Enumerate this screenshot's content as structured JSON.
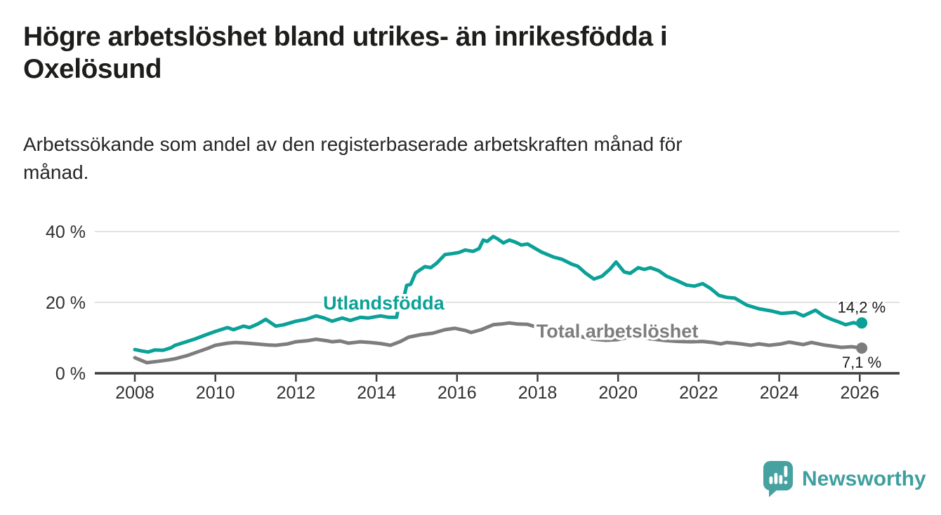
{
  "title": {
    "lines": [
      "Högre arbetslöshet bland utrikes- än inrikesfödda i",
      "Oxelösund"
    ]
  },
  "subtitle": {
    "lines": [
      "Arbetssökande som andel av den registerbaserade arbetskraften månad för",
      "månad."
    ]
  },
  "chart_data": {
    "type": "line",
    "title": "Högre arbetslöshet bland utrikes- än inrikesfödda i Oxelösund",
    "subtitle": "Arbetssökande som andel av den registerbaserade arbetskraften månad för månad.",
    "grid": "horizontal-only",
    "legend_position": "inline-labels",
    "x_axis": {
      "range": [
        2007,
        2027
      ],
      "ticks": [
        2008,
        2010,
        2012,
        2014,
        2016,
        2018,
        2020,
        2022,
        2024,
        2026
      ]
    },
    "y_axis": {
      "range": [
        0,
        42
      ],
      "unit": "%",
      "ticks": [
        {
          "value": 0,
          "label": "0 %"
        },
        {
          "value": 20,
          "label": "20 %"
        },
        {
          "value": 40,
          "label": "40 %"
        }
      ],
      "gridlines": [
        20,
        40
      ]
    },
    "series": [
      {
        "id": "utlandsfodda",
        "name": "Utlandsfödda",
        "color": "#0ba198",
        "end_label": "14,2 %",
        "end_value": 14.2,
        "label_anchor": {
          "x": 2014.18,
          "y": 18.0
        },
        "points": [
          [
            2008.0,
            6.7
          ],
          [
            2008.17,
            6.3
          ],
          [
            2008.33,
            6.0
          ],
          [
            2008.5,
            6.6
          ],
          [
            2008.7,
            6.5
          ],
          [
            2008.9,
            7.2
          ],
          [
            2009.0,
            7.9
          ],
          [
            2009.25,
            8.8
          ],
          [
            2009.5,
            9.7
          ],
          [
            2009.75,
            10.8
          ],
          [
            2010.0,
            11.8
          ],
          [
            2010.3,
            12.9
          ],
          [
            2010.45,
            12.3
          ],
          [
            2010.7,
            13.3
          ],
          [
            2010.85,
            12.9
          ],
          [
            2011.05,
            13.9
          ],
          [
            2011.25,
            15.2
          ],
          [
            2011.5,
            13.3
          ],
          [
            2011.7,
            13.7
          ],
          [
            2011.85,
            14.2
          ],
          [
            2012.0,
            14.7
          ],
          [
            2012.25,
            15.2
          ],
          [
            2012.5,
            16.2
          ],
          [
            2012.7,
            15.6
          ],
          [
            2012.9,
            14.7
          ],
          [
            2013.15,
            15.6
          ],
          [
            2013.35,
            14.9
          ],
          [
            2013.6,
            15.8
          ],
          [
            2013.8,
            15.6
          ],
          [
            2014.1,
            16.2
          ],
          [
            2014.3,
            15.8
          ],
          [
            2014.5,
            15.8
          ],
          [
            2014.6,
            21.8
          ],
          [
            2014.68,
            21.4
          ],
          [
            2014.75,
            24.8
          ],
          [
            2014.85,
            25.1
          ],
          [
            2014.97,
            28.3
          ],
          [
            2015.2,
            30.1
          ],
          [
            2015.35,
            29.8
          ],
          [
            2015.5,
            31.1
          ],
          [
            2015.7,
            33.5
          ],
          [
            2015.9,
            33.8
          ],
          [
            2016.05,
            34.1
          ],
          [
            2016.2,
            34.8
          ],
          [
            2016.4,
            34.4
          ],
          [
            2016.55,
            35.2
          ],
          [
            2016.65,
            37.6
          ],
          [
            2016.75,
            37.2
          ],
          [
            2016.9,
            38.6
          ],
          [
            2017.0,
            38.0
          ],
          [
            2017.15,
            36.8
          ],
          [
            2017.3,
            37.6
          ],
          [
            2017.45,
            37.0
          ],
          [
            2017.6,
            36.2
          ],
          [
            2017.75,
            36.5
          ],
          [
            2017.9,
            35.5
          ],
          [
            2018.1,
            34.2
          ],
          [
            2018.4,
            32.8
          ],
          [
            2018.6,
            32.2
          ],
          [
            2018.85,
            30.8
          ],
          [
            2019.0,
            30.2
          ],
          [
            2019.2,
            28.2
          ],
          [
            2019.4,
            26.6
          ],
          [
            2019.6,
            27.4
          ],
          [
            2019.8,
            29.4
          ],
          [
            2019.95,
            31.4
          ],
          [
            2020.15,
            28.6
          ],
          [
            2020.3,
            28.2
          ],
          [
            2020.5,
            29.8
          ],
          [
            2020.65,
            29.3
          ],
          [
            2020.8,
            29.8
          ],
          [
            2021.0,
            29.0
          ],
          [
            2021.2,
            27.4
          ],
          [
            2021.45,
            26.2
          ],
          [
            2021.7,
            24.9
          ],
          [
            2021.9,
            24.6
          ],
          [
            2022.1,
            25.3
          ],
          [
            2022.3,
            23.9
          ],
          [
            2022.5,
            22.0
          ],
          [
            2022.7,
            21.4
          ],
          [
            2022.9,
            21.2
          ],
          [
            2023.05,
            20.2
          ],
          [
            2023.2,
            19.2
          ],
          [
            2023.5,
            18.2
          ],
          [
            2023.8,
            17.6
          ],
          [
            2024.05,
            16.9
          ],
          [
            2024.4,
            17.2
          ],
          [
            2024.6,
            16.2
          ],
          [
            2024.9,
            17.8
          ],
          [
            2025.1,
            16.2
          ],
          [
            2025.3,
            15.2
          ],
          [
            2025.5,
            14.4
          ],
          [
            2025.65,
            13.7
          ],
          [
            2025.85,
            14.3
          ],
          [
            2025.95,
            13.9
          ],
          [
            2026.05,
            14.2
          ]
        ]
      },
      {
        "id": "total",
        "name": "Total arbetslöshet",
        "color": "#7d7d7d",
        "end_label": "7,1 %",
        "end_value": 7.1,
        "label_anchor": {
          "x": 2019.98,
          "y": 10.1
        },
        "points": [
          [
            2008.0,
            4.4
          ],
          [
            2008.3,
            3.0
          ],
          [
            2008.6,
            3.4
          ],
          [
            2008.85,
            3.8
          ],
          [
            2009.0,
            4.1
          ],
          [
            2009.3,
            5.0
          ],
          [
            2009.6,
            6.2
          ],
          [
            2009.85,
            7.2
          ],
          [
            2010.0,
            7.9
          ],
          [
            2010.3,
            8.5
          ],
          [
            2010.5,
            8.7
          ],
          [
            2010.8,
            8.5
          ],
          [
            2011.0,
            8.3
          ],
          [
            2011.3,
            8.0
          ],
          [
            2011.5,
            7.9
          ],
          [
            2011.8,
            8.3
          ],
          [
            2012.0,
            8.9
          ],
          [
            2012.3,
            9.2
          ],
          [
            2012.5,
            9.6
          ],
          [
            2012.75,
            9.2
          ],
          [
            2012.9,
            8.9
          ],
          [
            2013.1,
            9.1
          ],
          [
            2013.3,
            8.5
          ],
          [
            2013.6,
            8.9
          ],
          [
            2013.85,
            8.7
          ],
          [
            2014.1,
            8.4
          ],
          [
            2014.35,
            7.9
          ],
          [
            2014.6,
            9.0
          ],
          [
            2014.8,
            10.2
          ],
          [
            2015.1,
            10.9
          ],
          [
            2015.4,
            11.3
          ],
          [
            2015.7,
            12.3
          ],
          [
            2015.95,
            12.7
          ],
          [
            2016.2,
            12.1
          ],
          [
            2016.35,
            11.5
          ],
          [
            2016.6,
            12.3
          ],
          [
            2016.9,
            13.7
          ],
          [
            2017.1,
            13.9
          ],
          [
            2017.3,
            14.2
          ],
          [
            2017.5,
            13.9
          ],
          [
            2017.75,
            13.8
          ],
          [
            2017.9,
            13.3
          ],
          [
            2018.2,
            12.6
          ],
          [
            2018.5,
            12.0
          ],
          [
            2018.8,
            11.2
          ],
          [
            2019.1,
            10.3
          ],
          [
            2019.4,
            9.6
          ],
          [
            2019.7,
            9.3
          ],
          [
            2020.0,
            9.5
          ],
          [
            2020.3,
            10.3
          ],
          [
            2020.6,
            10.0
          ],
          [
            2020.9,
            9.6
          ],
          [
            2021.2,
            9.2
          ],
          [
            2021.5,
            9.0
          ],
          [
            2021.8,
            8.9
          ],
          [
            2022.1,
            9.0
          ],
          [
            2022.35,
            8.7
          ],
          [
            2022.55,
            8.3
          ],
          [
            2022.7,
            8.7
          ],
          [
            2022.9,
            8.5
          ],
          [
            2023.05,
            8.3
          ],
          [
            2023.3,
            7.9
          ],
          [
            2023.5,
            8.3
          ],
          [
            2023.75,
            7.9
          ],
          [
            2024.05,
            8.3
          ],
          [
            2024.25,
            8.8
          ],
          [
            2024.45,
            8.4
          ],
          [
            2024.6,
            8.1
          ],
          [
            2024.8,
            8.7
          ],
          [
            2025.1,
            8.0
          ],
          [
            2025.3,
            7.7
          ],
          [
            2025.55,
            7.3
          ],
          [
            2025.8,
            7.5
          ],
          [
            2026.05,
            7.1
          ]
        ]
      }
    ]
  },
  "colors": {
    "accent_teal": "#0ba198",
    "series_gray": "#7d7d7d",
    "gridline": "#d9d9d9",
    "axis": "#3d3d3d",
    "tick_text": "#303030",
    "value_label_text": "#1a1a1a",
    "logo_teal": "#46a1a1"
  },
  "logo": {
    "brand": "Newsworthy",
    "icon": "bar-chart-speech-bubble-icon"
  }
}
